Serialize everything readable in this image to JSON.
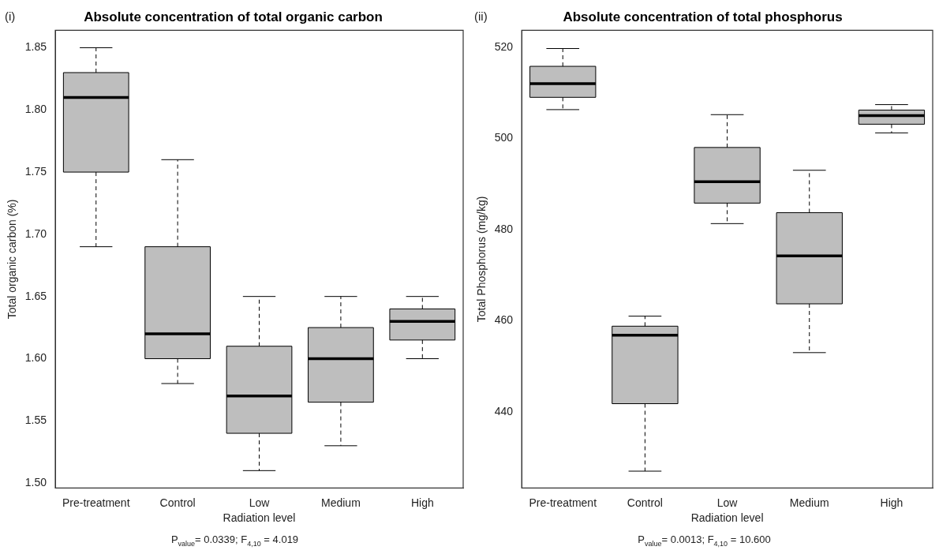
{
  "chart_data": [
    {
      "type": "box",
      "title": "Absolute concentration of total organic carbon",
      "xlabel": "Radiation level",
      "ylabel": "Total organic carbon (%)",
      "categories": [
        "Pre-treatment",
        "Control",
        "Low",
        "Medium",
        "High"
      ],
      "boxes": [
        {
          "low": 1.69,
          "q1": 1.75,
          "median": 1.81,
          "q3": 1.83,
          "high": 1.85
        },
        {
          "low": 1.58,
          "q1": 1.6,
          "median": 1.62,
          "q3": 1.69,
          "high": 1.76
        },
        {
          "low": 1.51,
          "q1": 1.54,
          "median": 1.57,
          "q3": 1.61,
          "high": 1.65
        },
        {
          "low": 1.53,
          "q1": 1.565,
          "median": 1.6,
          "q3": 1.625,
          "high": 1.65
        },
        {
          "low": 1.6,
          "q1": 1.615,
          "median": 1.63,
          "q3": 1.64,
          "high": 1.65
        }
      ],
      "color": "#bebebe",
      "ylim": [
        1.496,
        1.864
      ],
      "yticks": [
        {
          "value": 1.5,
          "label": "1.50"
        },
        {
          "value": 1.55,
          "label": "1.55"
        },
        {
          "value": 1.6,
          "label": "1.60"
        },
        {
          "value": 1.65,
          "label": "1.65"
        },
        {
          "value": 1.7,
          "label": "1.70"
        },
        {
          "value": 1.75,
          "label": "1.75"
        },
        {
          "value": 1.8,
          "label": "1.80"
        },
        {
          "value": 1.85,
          "label": "1.85"
        }
      ],
      "grid": false,
      "legend": false,
      "annotations": [
        "(i)",
        "P$_{value}$= 0.0339; F$_{4,10}$ = 4.019"
      ]
    },
    {
      "type": "box",
      "title": "Absolute concentration of total phosphorus",
      "xlabel": "Radiation level",
      "ylabel": "Total Phosphorus (mg/kg)",
      "categories": [
        "Pre-treatment",
        "Control",
        "Low",
        "Medium",
        "High"
      ],
      "boxes": [
        {
          "low": 506.3,
          "q1": 509,
          "median": 512,
          "q3": 515.8,
          "high": 519.7
        },
        {
          "low": 427,
          "q1": 441.8,
          "median": 456.8,
          "q3": 458.8,
          "high": 461
        },
        {
          "low": 481.3,
          "q1": 485.8,
          "median": 490.5,
          "q3": 498,
          "high": 505.2
        },
        {
          "low": 453,
          "q1": 463.7,
          "median": 474.2,
          "q3": 483.7,
          "high": 493
        },
        {
          "low": 501.2,
          "q1": 503.1,
          "median": 505,
          "q3": 506.2,
          "high": 507.4
        }
      ],
      "color": "#bebebe",
      "ylim": [
        423.3,
        523.7
      ],
      "yticks": [
        440,
        460,
        480,
        500,
        520
      ],
      "grid": false,
      "legend": false,
      "annotations": [
        "(ii)",
        "P$_{value}$= 0.0013; F$_{4,10}$ = 10.600"
      ]
    }
  ]
}
